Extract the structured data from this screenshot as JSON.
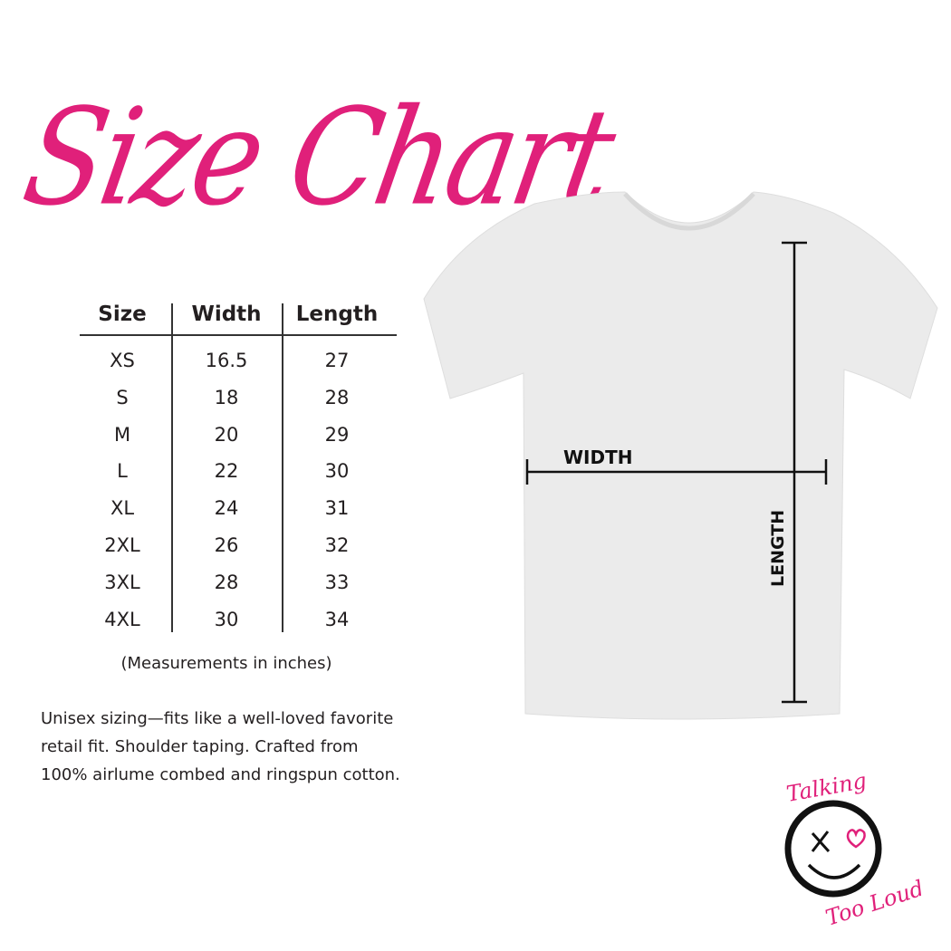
{
  "title": "Size Chart",
  "brand_color": "#e0207a",
  "table": {
    "headers": [
      "Size",
      "Width",
      "Length"
    ],
    "rows": [
      [
        "XS",
        "16.5",
        "27"
      ],
      [
        "S",
        "18",
        "28"
      ],
      [
        "M",
        "20",
        "29"
      ],
      [
        "L",
        "22",
        "30"
      ],
      [
        "XL",
        "24",
        "31"
      ],
      [
        "2XL",
        "26",
        "32"
      ],
      [
        "3XL",
        "28",
        "33"
      ],
      [
        "4XL",
        "30",
        "34"
      ]
    ]
  },
  "note": "(Measurements in inches)",
  "description": [
    "Unisex sizing—fits like a well-loved favorite",
    "retail fit. Shoulder taping. Crafted from",
    "100% airlume combed and ringspun cotton."
  ],
  "diagram": {
    "width_label": "WIDTH",
    "length_label": "LENGTH"
  },
  "logo": {
    "text_top": "Talking",
    "text_bottom": "Too Loud"
  }
}
